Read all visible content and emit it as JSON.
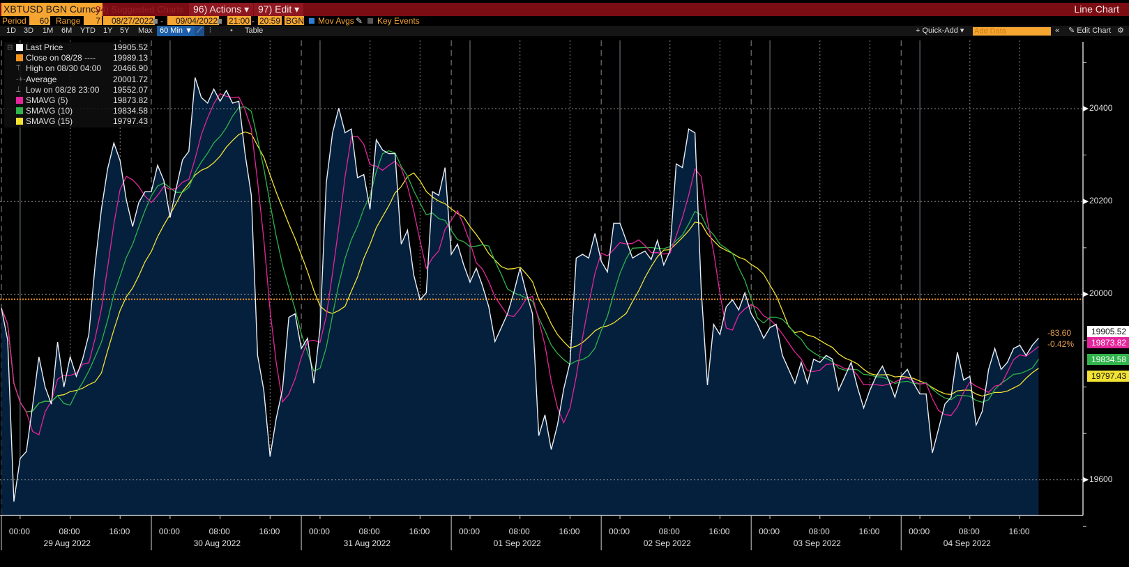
{
  "header": {
    "ticker": "XBTUSD BGN Curncy",
    "suggested": "94) Suggested Charts",
    "actions": "96) Actions ▾",
    "edit": "97) Edit ▾",
    "chart_type": "Line Chart"
  },
  "controls": {
    "period_label": "Period",
    "period_value": "60",
    "range_label": "Range",
    "range_value": "7",
    "start_date": "08/27/2022",
    "end_date": "09/04/2022",
    "start_time": "21:00",
    "end_time": "20:59",
    "source": "BGN",
    "mov_avgs_label": "Mov Avgs",
    "mov_avgs_checked": true,
    "key_events_label": "Key Events",
    "key_events_checked": false
  },
  "toolbar": {
    "ranges": [
      "1D",
      "3D",
      "1M",
      "6M",
      "YTD",
      "1Y",
      "5Y",
      "Max"
    ],
    "interval": "60 Min ▼",
    "table_label": "Table",
    "quick_add": "+ Quick-Add ▾",
    "add_data_placeholder": "Add Data",
    "collapse": "«",
    "edit_chart": "✎ Edit Chart",
    "settings": "⚙"
  },
  "legend": {
    "items": [
      {
        "name": "Last Price",
        "value": "19905.52",
        "color": "#ffffff",
        "type": "swatch"
      },
      {
        "name": "Close on 08/28 ----",
        "value": "19989.13",
        "color": "#f7941d",
        "type": "swatch"
      },
      {
        "name": "High on 08/30 04:00",
        "value": "20466.90",
        "type": "glyph",
        "glyph": "⟙"
      },
      {
        "name": "Average",
        "value": "20001.72",
        "type": "glyph",
        "glyph": "-+-"
      },
      {
        "name": "Low on 08/28 23:00",
        "value": "19552.07",
        "type": "glyph",
        "glyph": "⟘"
      },
      {
        "name": "SMAVG (5)",
        "value": "19873.82",
        "color": "#e5259b",
        "type": "swatch"
      },
      {
        "name": "SMAVG (10)",
        "value": "19834.58",
        "color": "#2fb34a",
        "type": "swatch"
      },
      {
        "name": "SMAVG (15)",
        "value": "19797.43",
        "color": "#f2e231",
        "type": "swatch"
      }
    ]
  },
  "change": {
    "abs": "-83.60",
    "pct": "-0.42%"
  },
  "tags": [
    {
      "value": "19905.52",
      "bg": "#ffffff",
      "fg": "#111111",
      "price": 19905.52
    },
    {
      "value": "19873.82",
      "bg": "#e5259b",
      "fg": "#ffffff",
      "price": 19873.82
    },
    {
      "value": "19834.58",
      "bg": "#2fb34a",
      "fg": "#ffffff",
      "price": 19834.58
    },
    {
      "value": "19797.43",
      "bg": "#f2e231",
      "fg": "#111111",
      "price": 19797.43
    }
  ],
  "colors": {
    "fill": "#04203d",
    "price_line": "#e8eef5",
    "sma5": "#e5259b",
    "sma10": "#2fb34a",
    "sma15": "#f2e231",
    "close_line": "#f7941d",
    "grid": "#8a8a8a"
  },
  "chart_data": {
    "type": "area",
    "title": "XBTUSD BGN Curncy — Line Chart (60 Min)",
    "xlabel": "",
    "ylabel": "",
    "ylim": [
      19480,
      20590
    ],
    "yticks": [
      19600,
      20000,
      20200,
      20400
    ],
    "x_tick_labels": [
      "00:00",
      "08:00",
      "16:00"
    ],
    "date_labels": [
      "29 Aug 2022",
      "30 Aug 2022",
      "31 Aug 2022",
      "01 Sep 2022",
      "02 Sep 2022",
      "03 Sep 2022",
      "04 Sep 2022"
    ],
    "x_start": "08/27/2022 21:00 (first visible 08/28 21:00)",
    "interval_minutes": 60,
    "close_reference": 19989.13,
    "grid": true,
    "legend_position": "top-left",
    "series": [
      {
        "name": "Last Price",
        "hourly_from_2022-08-28T21:00": [
          19970,
          19901,
          19553,
          19646,
          19661,
          19760,
          19865,
          19800,
          19763,
          19897,
          19800,
          19865,
          19823,
          19860,
          19913,
          20063,
          20183,
          20270,
          20326,
          20288,
          20203,
          20146,
          20198,
          20221,
          20221,
          20278,
          20245,
          20165,
          20230,
          20290,
          20308,
          20467,
          20424,
          20412,
          20442,
          20416,
          20439,
          20412,
          20416,
          20303,
          20213,
          19868,
          19793,
          19650,
          19733,
          19796,
          19950,
          19958,
          19883,
          19905,
          19808,
          19928,
          20240,
          20348,
          20401,
          20348,
          20356,
          20251,
          20258,
          20183,
          20333,
          20311,
          20303,
          20303,
          20108,
          20138,
          20041,
          19988,
          20003,
          20221,
          20213,
          20273,
          20086,
          20108,
          20063,
          20026,
          20056,
          20018,
          19973,
          19898,
          19928,
          19958,
          20003,
          20056,
          20003,
          19958,
          19695,
          19740,
          19665,
          19718,
          19796,
          19853,
          20078,
          20086,
          20078,
          20131,
          20071,
          20048,
          20153,
          20153,
          20116,
          20078,
          20086,
          20093,
          20075,
          20116,
          20063,
          20093,
          20281,
          20273,
          20356,
          20348,
          20011,
          19804,
          19935,
          19913,
          19973,
          19988,
          19966,
          20003,
          19958,
          19935,
          19905,
          19928,
          19935,
          19868,
          19838,
          19808,
          19853,
          19808,
          19860,
          19853,
          19868,
          19860,
          19793,
          19823,
          19853,
          19800,
          19755,
          19793,
          19823,
          19845,
          19815,
          19778,
          19823,
          19838,
          19808,
          19785,
          19785,
          19658,
          19710,
          19763,
          19778,
          19875,
          19815,
          19823,
          19718,
          19748,
          19838,
          19883,
          19838,
          19853,
          19883,
          19890,
          19868,
          19890,
          19905.52
        ]
      },
      {
        "name": "SMAVG (5)",
        "last": 19873.82
      },
      {
        "name": "SMAVG (10)",
        "last": 19834.58
      },
      {
        "name": "SMAVG (15)",
        "last": 19797.43
      }
    ]
  }
}
